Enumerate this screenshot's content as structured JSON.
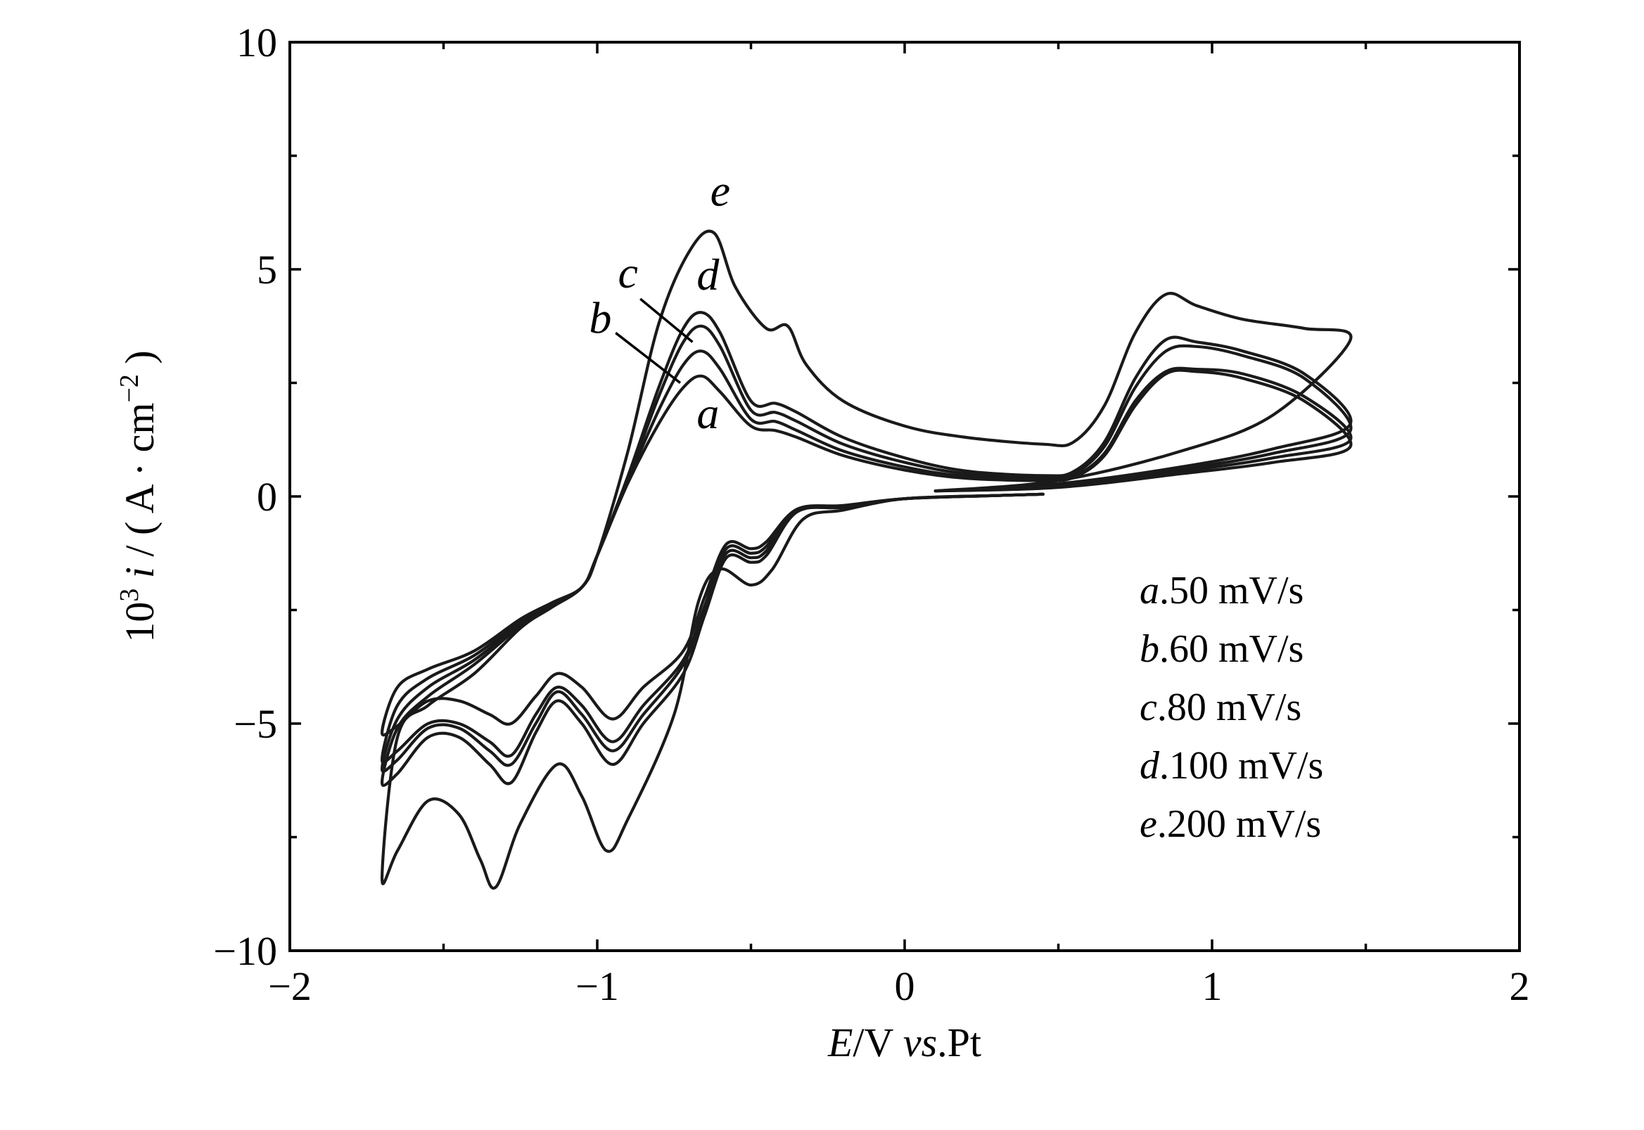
{
  "chart_data": {
    "type": "line",
    "title": "",
    "xlabel": {
      "italic": "E",
      "unit": "/V ",
      "vs": "vs",
      "ref": ".Pt"
    },
    "ylabel": {
      "prefix": "10",
      "exp": "3",
      "var": " i",
      "unit": " / ( A · cm",
      "unit_exp": "−2",
      "close": " )"
    },
    "xlim": [
      -2,
      2
    ],
    "ylim": [
      -10,
      10
    ],
    "xticks": [
      -2,
      -1.5,
      -1,
      -0.5,
      0,
      0.5,
      1,
      1.5,
      2
    ],
    "xtick_labels": [
      "−2",
      "",
      "−1",
      "",
      "0",
      "",
      "1",
      "",
      "2"
    ],
    "yticks": [
      -10,
      -7.5,
      -5,
      -2.5,
      0,
      2.5,
      5,
      7.5,
      10
    ],
    "ytick_labels": [
      "−10",
      "",
      "−5",
      "",
      "0",
      "",
      "5",
      "",
      "10"
    ],
    "grid": false,
    "legend_position": "bottom-right",
    "line_color": "#1a1a1a",
    "series": [
      {
        "name": "a",
        "rate": "50 mV/s",
        "anodic": [
          [
            0.1,
            0.12
          ],
          [
            0.5,
            0.2
          ],
          [
            0.9,
            0.5
          ],
          [
            1.2,
            0.75
          ],
          [
            1.45,
            1.1
          ]
        ],
        "return": [
          [
            1.45,
            1.1
          ],
          [
            1.3,
            2.1
          ],
          [
            1.1,
            2.6
          ],
          [
            0.95,
            2.75
          ],
          [
            0.85,
            2.7
          ],
          [
            0.75,
            2.0
          ],
          [
            0.65,
            0.9
          ],
          [
            0.55,
            0.42
          ],
          [
            0.45,
            0.35
          ],
          [
            0.2,
            0.4
          ],
          [
            0,
            0.58
          ],
          [
            -0.2,
            0.9
          ],
          [
            -0.35,
            1.3
          ],
          [
            -0.42,
            1.45
          ],
          [
            -0.5,
            1.55
          ],
          [
            -0.6,
            2.3
          ],
          [
            -0.66,
            2.65
          ],
          [
            -0.72,
            2.4
          ],
          [
            -0.8,
            1.6
          ],
          [
            -0.9,
            0.3
          ],
          [
            -1.0,
            -1.3
          ],
          [
            -1.05,
            -2.0
          ],
          [
            -1.15,
            -2.35
          ],
          [
            -1.25,
            -2.7
          ],
          [
            -1.4,
            -3.4
          ],
          [
            -1.55,
            -3.8
          ],
          [
            -1.65,
            -4.2
          ],
          [
            -1.7,
            -5.2
          ]
        ],
        "cathodic": [
          [
            -1.7,
            -5.2
          ],
          [
            -1.65,
            -5.05
          ],
          [
            -1.55,
            -4.5
          ],
          [
            -1.45,
            -4.5
          ],
          [
            -1.35,
            -4.8
          ],
          [
            -1.28,
            -5.0
          ],
          [
            -1.2,
            -4.4
          ],
          [
            -1.13,
            -3.9
          ],
          [
            -1.05,
            -4.2
          ],
          [
            -0.95,
            -4.9
          ],
          [
            -0.85,
            -4.2
          ],
          [
            -0.72,
            -3.4
          ],
          [
            -0.65,
            -2.2
          ],
          [
            -0.58,
            -1.05
          ],
          [
            -0.5,
            -1.15
          ],
          [
            -0.45,
            -1.0
          ],
          [
            -0.35,
            -0.28
          ],
          [
            -0.2,
            -0.2
          ],
          [
            0,
            -0.05
          ],
          [
            0.3,
            0.02
          ],
          [
            0.45,
            0.05
          ]
        ]
      },
      {
        "name": "b",
        "rate": "60 mV/s",
        "anodic": [
          [
            0.1,
            0.12
          ],
          [
            0.5,
            0.22
          ],
          [
            0.9,
            0.55
          ],
          [
            1.2,
            0.85
          ],
          [
            1.45,
            1.25
          ]
        ],
        "return": [
          [
            1.45,
            1.25
          ],
          [
            1.3,
            2.2
          ],
          [
            1.1,
            2.7
          ],
          [
            0.95,
            2.8
          ],
          [
            0.85,
            2.75
          ],
          [
            0.75,
            2.1
          ],
          [
            0.65,
            0.95
          ],
          [
            0.55,
            0.45
          ],
          [
            0.45,
            0.38
          ],
          [
            0.2,
            0.44
          ],
          [
            0,
            0.65
          ],
          [
            -0.2,
            1.0
          ],
          [
            -0.35,
            1.45
          ],
          [
            -0.42,
            1.65
          ],
          [
            -0.5,
            1.7
          ],
          [
            -0.6,
            2.8
          ],
          [
            -0.66,
            3.2
          ],
          [
            -0.72,
            2.9
          ],
          [
            -0.8,
            1.9
          ],
          [
            -0.9,
            0.35
          ],
          [
            -1.0,
            -1.3
          ],
          [
            -1.05,
            -2.0
          ],
          [
            -1.15,
            -2.35
          ],
          [
            -1.25,
            -2.75
          ],
          [
            -1.4,
            -3.5
          ],
          [
            -1.55,
            -4.0
          ],
          [
            -1.65,
            -4.6
          ],
          [
            -1.7,
            -5.8
          ]
        ],
        "cathodic": [
          [
            -1.7,
            -5.8
          ],
          [
            -1.65,
            -5.6
          ],
          [
            -1.55,
            -5.0
          ],
          [
            -1.45,
            -5.0
          ],
          [
            -1.35,
            -5.4
          ],
          [
            -1.28,
            -5.7
          ],
          [
            -1.2,
            -4.8
          ],
          [
            -1.13,
            -4.2
          ],
          [
            -1.05,
            -4.6
          ],
          [
            -0.95,
            -5.4
          ],
          [
            -0.85,
            -4.6
          ],
          [
            -0.72,
            -3.6
          ],
          [
            -0.65,
            -2.4
          ],
          [
            -0.58,
            -1.15
          ],
          [
            -0.5,
            -1.25
          ],
          [
            -0.45,
            -1.1
          ],
          [
            -0.35,
            -0.3
          ],
          [
            -0.2,
            -0.22
          ],
          [
            0,
            -0.05
          ],
          [
            0.3,
            0.02
          ],
          [
            0.45,
            0.05
          ]
        ]
      },
      {
        "name": "c",
        "rate": "80 mV/s",
        "anodic": [
          [
            0.1,
            0.12
          ],
          [
            0.5,
            0.25
          ],
          [
            0.9,
            0.6
          ],
          [
            1.2,
            0.95
          ],
          [
            1.45,
            1.45
          ]
        ],
        "return": [
          [
            1.45,
            1.45
          ],
          [
            1.3,
            2.6
          ],
          [
            1.1,
            3.1
          ],
          [
            0.95,
            3.3
          ],
          [
            0.85,
            3.2
          ],
          [
            0.75,
            2.4
          ],
          [
            0.65,
            1.1
          ],
          [
            0.55,
            0.5
          ],
          [
            0.45,
            0.42
          ],
          [
            0.2,
            0.5
          ],
          [
            0,
            0.75
          ],
          [
            -0.2,
            1.15
          ],
          [
            -0.35,
            1.65
          ],
          [
            -0.42,
            1.85
          ],
          [
            -0.5,
            1.9
          ],
          [
            -0.6,
            3.3
          ],
          [
            -0.66,
            3.75
          ],
          [
            -0.72,
            3.4
          ],
          [
            -0.8,
            2.2
          ],
          [
            -0.9,
            0.4
          ],
          [
            -1.0,
            -1.3
          ],
          [
            -1.05,
            -2.0
          ],
          [
            -1.15,
            -2.4
          ],
          [
            -1.25,
            -2.8
          ],
          [
            -1.4,
            -3.6
          ],
          [
            -1.55,
            -4.2
          ],
          [
            -1.65,
            -4.9
          ],
          [
            -1.7,
            -6.0
          ]
        ],
        "cathodic": [
          [
            -1.7,
            -6.0
          ],
          [
            -1.65,
            -5.8
          ],
          [
            -1.55,
            -5.1
          ],
          [
            -1.45,
            -5.1
          ],
          [
            -1.35,
            -5.6
          ],
          [
            -1.28,
            -5.9
          ],
          [
            -1.2,
            -5.0
          ],
          [
            -1.13,
            -4.3
          ],
          [
            -1.05,
            -4.8
          ],
          [
            -0.95,
            -5.6
          ],
          [
            -0.85,
            -4.8
          ],
          [
            -0.72,
            -3.7
          ],
          [
            -0.65,
            -2.5
          ],
          [
            -0.58,
            -1.25
          ],
          [
            -0.5,
            -1.35
          ],
          [
            -0.45,
            -1.2
          ],
          [
            -0.35,
            -0.32
          ],
          [
            -0.2,
            -0.22
          ],
          [
            0,
            -0.05
          ],
          [
            0.3,
            0.02
          ],
          [
            0.45,
            0.05
          ]
        ]
      },
      {
        "name": "d",
        "rate": "100 mV/s",
        "anodic": [
          [
            0.1,
            0.12
          ],
          [
            0.5,
            0.28
          ],
          [
            0.9,
            0.65
          ],
          [
            1.2,
            1.05
          ],
          [
            1.45,
            1.6
          ]
        ],
        "return": [
          [
            1.45,
            1.6
          ],
          [
            1.3,
            2.7
          ],
          [
            1.1,
            3.2
          ],
          [
            0.95,
            3.4
          ],
          [
            0.85,
            3.45
          ],
          [
            0.75,
            2.6
          ],
          [
            0.65,
            1.2
          ],
          [
            0.55,
            0.55
          ],
          [
            0.45,
            0.46
          ],
          [
            0.2,
            0.56
          ],
          [
            0,
            0.85
          ],
          [
            -0.2,
            1.3
          ],
          [
            -0.35,
            1.85
          ],
          [
            -0.42,
            2.05
          ],
          [
            -0.5,
            2.1
          ],
          [
            -0.6,
            3.6
          ],
          [
            -0.66,
            4.05
          ],
          [
            -0.72,
            3.7
          ],
          [
            -0.8,
            2.4
          ],
          [
            -0.9,
            0.45
          ],
          [
            -1.0,
            -1.3
          ],
          [
            -1.05,
            -2.0
          ],
          [
            -1.15,
            -2.4
          ],
          [
            -1.25,
            -2.85
          ],
          [
            -1.4,
            -3.7
          ],
          [
            -1.55,
            -4.4
          ],
          [
            -1.65,
            -5.1
          ],
          [
            -1.7,
            -6.3
          ]
        ],
        "cathodic": [
          [
            -1.7,
            -6.3
          ],
          [
            -1.65,
            -6.1
          ],
          [
            -1.55,
            -5.3
          ],
          [
            -1.45,
            -5.3
          ],
          [
            -1.35,
            -5.9
          ],
          [
            -1.28,
            -6.3
          ],
          [
            -1.2,
            -5.2
          ],
          [
            -1.13,
            -4.5
          ],
          [
            -1.05,
            -5.0
          ],
          [
            -0.95,
            -5.9
          ],
          [
            -0.85,
            -5.0
          ],
          [
            -0.72,
            -3.9
          ],
          [
            -0.65,
            -2.6
          ],
          [
            -0.58,
            -1.35
          ],
          [
            -0.5,
            -1.45
          ],
          [
            -0.45,
            -1.3
          ],
          [
            -0.35,
            -0.34
          ],
          [
            -0.2,
            -0.24
          ],
          [
            0,
            -0.05
          ],
          [
            0.3,
            0.02
          ],
          [
            0.45,
            0.05
          ]
        ]
      },
      {
        "name": "e",
        "rate": "200 mV/s",
        "anodic": [
          [
            0.1,
            0.12
          ],
          [
            0.5,
            0.35
          ],
          [
            0.9,
            1.0
          ],
          [
            1.2,
            1.8
          ],
          [
            1.45,
            3.45
          ]
        ],
        "return": [
          [
            1.45,
            3.45
          ],
          [
            1.3,
            3.7
          ],
          [
            1.1,
            3.9
          ],
          [
            0.95,
            4.2
          ],
          [
            0.85,
            4.45
          ],
          [
            0.75,
            3.6
          ],
          [
            0.65,
            2.0
          ],
          [
            0.55,
            1.2
          ],
          [
            0.45,
            1.15
          ],
          [
            0.2,
            1.3
          ],
          [
            0,
            1.55
          ],
          [
            -0.2,
            2.1
          ],
          [
            -0.32,
            2.9
          ],
          [
            -0.38,
            3.75
          ],
          [
            -0.45,
            3.7
          ],
          [
            -0.55,
            4.6
          ],
          [
            -0.62,
            5.8
          ],
          [
            -0.7,
            5.4
          ],
          [
            -0.8,
            3.8
          ],
          [
            -0.9,
            1.0
          ],
          [
            -1.0,
            -1.3
          ],
          [
            -1.05,
            -2.0
          ],
          [
            -1.15,
            -2.45
          ],
          [
            -1.25,
            -2.9
          ],
          [
            -1.4,
            -3.9
          ],
          [
            -1.55,
            -4.6
          ],
          [
            -1.65,
            -5.3
          ],
          [
            -1.7,
            -8.4
          ]
        ],
        "cathodic": [
          [
            -1.7,
            -8.4
          ],
          [
            -1.65,
            -7.8
          ],
          [
            -1.55,
            -6.7
          ],
          [
            -1.45,
            -7.0
          ],
          [
            -1.38,
            -8.0
          ],
          [
            -1.33,
            -8.6
          ],
          [
            -1.25,
            -7.2
          ],
          [
            -1.13,
            -5.9
          ],
          [
            -1.05,
            -6.6
          ],
          [
            -0.97,
            -7.8
          ],
          [
            -0.9,
            -7.1
          ],
          [
            -0.75,
            -4.8
          ],
          [
            -0.67,
            -2.3
          ],
          [
            -0.6,
            -1.6
          ],
          [
            -0.5,
            -1.95
          ],
          [
            -0.43,
            -1.6
          ],
          [
            -0.33,
            -0.5
          ],
          [
            -0.2,
            -0.3
          ],
          [
            0,
            -0.05
          ],
          [
            0.3,
            0.02
          ],
          [
            0.45,
            0.05
          ]
        ]
      }
    ],
    "curve_labels": [
      {
        "name": "e",
        "text": "e",
        "at": [
          -0.6,
          6.4
        ]
      },
      {
        "name": "d",
        "text": "d",
        "at": [
          -0.64,
          4.55
        ]
      },
      {
        "name": "c",
        "text": "c",
        "at": [
          -0.9,
          4.6
        ]
      },
      {
        "name": "b",
        "text": "b",
        "at": [
          -0.99,
          3.6
        ]
      },
      {
        "name": "a",
        "text": "a",
        "at": [
          -0.64,
          1.5
        ]
      }
    ],
    "leader_lines": [
      {
        "name": "c",
        "from": [
          -0.86,
          4.35
        ],
        "to": [
          -0.69,
          3.4
        ]
      },
      {
        "name": "b",
        "from": [
          -0.94,
          3.6
        ],
        "to": [
          -0.73,
          2.5
        ]
      }
    ],
    "legend": [
      {
        "letter": "a",
        "text": ".50 mV/s"
      },
      {
        "letter": "b",
        "text": ".60 mV/s"
      },
      {
        "letter": "c",
        "text": ".80 mV/s"
      },
      {
        "letter": "d",
        "text": ".100 mV/s"
      },
      {
        "letter": "e",
        "text": ".200 mV/s"
      }
    ]
  }
}
